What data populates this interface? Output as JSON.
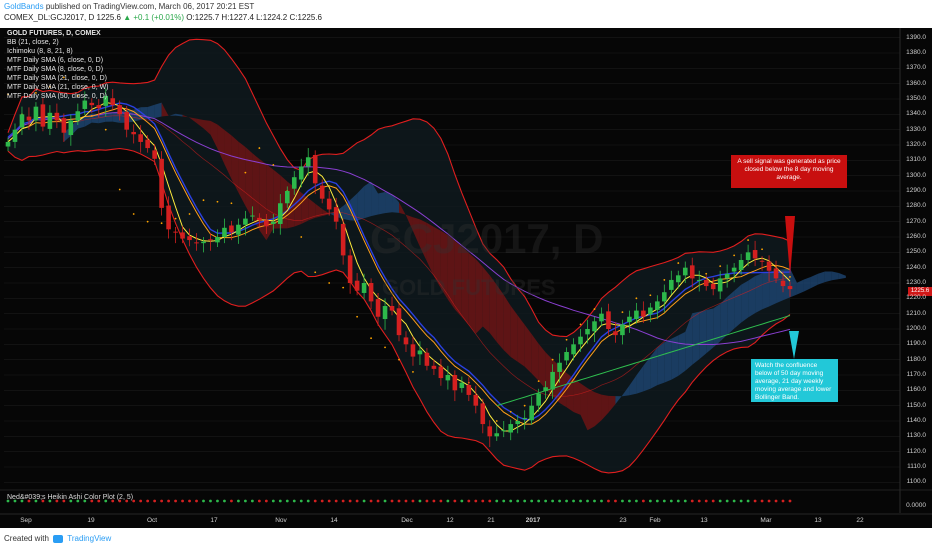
{
  "header": {
    "author": "GoldBands",
    "published": "published on TradingView.com, March 06, 2017 20:21 EST",
    "symbol_line_prefix": "COMEX_DL:GCJ2017, D",
    "last": "1225.6",
    "change": "▲ +0.1 (+0.01%)",
    "ohlc": "O:1225.7 H:1227.4 L:1224.2 C:1225.6"
  },
  "footer": {
    "created_with": "Created with",
    "brand": "TradingView"
  },
  "chart_data": {
    "type": "candlestick",
    "title": "GOLD FUTURES, D, COMEX",
    "watermark_symbol": "GCJ2017, D",
    "watermark_name": "GOLD FUTURES",
    "legend": [
      "BB (21, close, 2)",
      "Ichimoku (8, 8, 21, 8)",
      "MTF Daily SMA (6, close, 0, D)",
      "MTF Daily SMA (8, close, 0, D)",
      "MTF Daily SMA (21, close, 0, D)",
      "MTF Daily SMA (21, close, 0, W)",
      "MTF Daily SMA (50, close, 0, D)"
    ],
    "y_ticks": [
      1390,
      1380,
      1370,
      1360,
      1350,
      1340,
      1330,
      1320,
      1310,
      1300,
      1290,
      1280,
      1270,
      1260,
      1250,
      1240,
      1230,
      1220,
      1210,
      1200,
      1190,
      1180,
      1170,
      1160,
      1150,
      1140,
      1130,
      1120,
      1110,
      1100
    ],
    "ylim": [
      1095,
      1395
    ],
    "last_price_label": "1225.6",
    "x_ticks": [
      "Sep",
      "19",
      "Oct",
      "17",
      "Nov",
      "14",
      "Dec",
      "12",
      "21",
      "2017",
      "23",
      "Feb",
      "13",
      "Mar",
      "13",
      "22"
    ],
    "indicator_label": "Ned&#039;s Heikin Ashi Color Plot (2, 5)",
    "indicator_value": "0.0000",
    "close_series": [
      1322,
      1330,
      1340,
      1336,
      1345,
      1332,
      1341,
      1336,
      1328,
      1336,
      1342,
      1349,
      1346,
      1344,
      1352,
      1346,
      1340,
      1330,
      1327,
      1322,
      1318,
      1311,
      1279,
      1265,
      1263,
      1259,
      1258,
      1256,
      1257,
      1258,
      1260,
      1266,
      1263,
      1268,
      1272,
      1274,
      1271,
      1267,
      1270,
      1282,
      1290,
      1299,
      1306,
      1312,
      1295,
      1285,
      1278,
      1270,
      1248,
      1230,
      1225,
      1230,
      1218,
      1208,
      1215,
      1212,
      1196,
      1190,
      1182,
      1186,
      1176,
      1174,
      1168,
      1170,
      1160,
      1165,
      1157,
      1150,
      1138,
      1130,
      1132,
      1134,
      1138,
      1140,
      1142,
      1150,
      1158,
      1162,
      1172,
      1178,
      1185,
      1190,
      1195,
      1200,
      1205,
      1210,
      1200,
      1196,
      1203,
      1208,
      1212,
      1208,
      1214,
      1218,
      1224,
      1232,
      1235,
      1240,
      1233,
      1232,
      1228,
      1226,
      1233,
      1236,
      1240,
      1245,
      1250,
      1246,
      1244,
      1238,
      1233,
      1228,
      1226
    ],
    "annotations": [
      "A sell signal was generated as price closed below the 8 day moving average.",
      "Watch the confluence below of 50 day moving average, 21 day weekly moving average and lower Bollinger Band."
    ],
    "colors": {
      "background": "#060606",
      "bull_candle": "#2db84b",
      "bear_candle": "#d42020",
      "bollinger": "#e01e1e",
      "cloud_bull": "#1f4a7a",
      "cloud_bear": "#7a1414",
      "sma_fast": "#ffec3d",
      "sma_mid": "#ff9f1a",
      "sma_21w": "#2fbf4f",
      "sma_50": "#8a3fd1",
      "kijun": "#2a40e0",
      "dots": "#ffa500"
    }
  }
}
